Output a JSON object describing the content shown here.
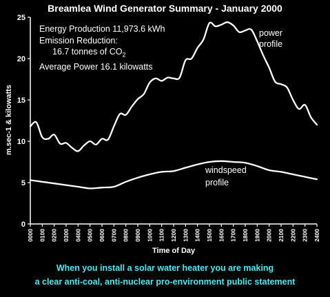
{
  "header": {
    "title": "Breamlea Wind Generator Summary - January 2000"
  },
  "annotations": {
    "energy": "Energy Production 11,973.6 kWh",
    "emission_label": "Emission Reduction:",
    "emission_value": "16.7 tonnes of CO",
    "emission_sub": "2",
    "average": "Average Power 16.1 kilowatts",
    "power_label_1": "power",
    "power_label_2": "profile",
    "wind_label_1": "windspeed",
    "wind_label_2": "profile"
  },
  "footer": {
    "line1": "When you install a solar water heater you are making",
    "line2": "a clear anti-coal, anti-nuclear pro-environment public statement"
  },
  "colors": {
    "background": "#000000",
    "foreground": "#ffffff",
    "footer_text": "#4fe8f2"
  },
  "chart_data": {
    "type": "line",
    "title": "Breamlea Wind Generator Summary - January 2000",
    "xlabel": "Time of Day",
    "ylabel": "m.sec-1 & kilowatts",
    "ylim": [
      0,
      25
    ],
    "xlim": [
      0,
      2400
    ],
    "grid": false,
    "y_ticks": [
      "0",
      "5",
      "10",
      "15",
      "20",
      "25"
    ],
    "x_ticks": [
      "0000",
      "0100",
      "0200",
      "0300",
      "0400",
      "0500",
      "0600",
      "0700",
      "0800",
      "0900",
      "1000",
      "1100",
      "1200",
      "1300",
      "1400",
      "1500",
      "1600",
      "1700",
      "1800",
      "1900",
      "2000",
      "2100",
      "2200",
      "2300",
      "2400"
    ],
    "series": [
      {
        "name": "power profile",
        "x": [
          0,
          50,
          100,
          150,
          200,
          250,
          300,
          350,
          400,
          450,
          500,
          550,
          600,
          650,
          700,
          750,
          800,
          850,
          900,
          950,
          1000,
          1050,
          1100,
          1150,
          1200,
          1250,
          1300,
          1350,
          1400,
          1450,
          1500,
          1550,
          1600,
          1650,
          1700,
          1750,
          1800,
          1850,
          1900,
          1950,
          2000,
          2050,
          2100,
          2150,
          2200,
          2250,
          2300,
          2350,
          2400
        ],
        "values": [
          11.8,
          12.3,
          10.5,
          10.3,
          10.8,
          9.7,
          9.8,
          9.2,
          8.8,
          9.5,
          10.0,
          9.6,
          10.3,
          10.2,
          11.8,
          13.3,
          13.2,
          14.2,
          15.1,
          15.7,
          17.1,
          17.6,
          17.3,
          17.7,
          17.6,
          17.7,
          19.8,
          20.0,
          21.3,
          22.3,
          24.3,
          23.9,
          24.1,
          24.4,
          24.0,
          23.2,
          23.4,
          23.5,
          22.1,
          20.4,
          18.9,
          17.2,
          16.9,
          16.5,
          15.0,
          13.9,
          14.4,
          12.9,
          12.0
        ]
      },
      {
        "name": "windspeed profile",
        "x": [
          0,
          100,
          200,
          300,
          400,
          500,
          600,
          700,
          800,
          900,
          1000,
          1100,
          1200,
          1300,
          1400,
          1500,
          1600,
          1700,
          1800,
          1900,
          2000,
          2100,
          2200,
          2300,
          2400
        ],
        "values": [
          5.3,
          5.1,
          4.9,
          4.7,
          4.5,
          4.3,
          4.4,
          4.5,
          5.1,
          5.6,
          6.0,
          6.3,
          6.4,
          6.8,
          7.2,
          7.5,
          7.6,
          7.5,
          7.4,
          7.0,
          6.5,
          6.3,
          6.0,
          5.7,
          5.4
        ]
      }
    ]
  }
}
